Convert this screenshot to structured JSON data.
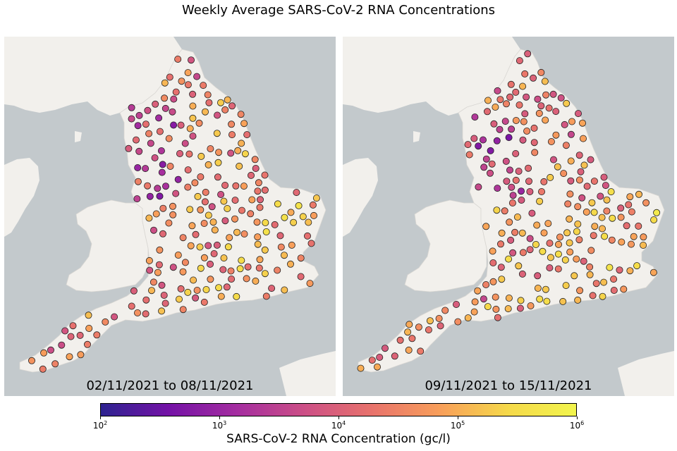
{
  "title": "Weekly Average SARS-CoV-2 RNA Concentrations",
  "panels": [
    {
      "label": "02/11/2021 to 08/11/2021",
      "seed": 11
    },
    {
      "label": "09/11/2021 to 15/11/2021",
      "seed": 29
    }
  ],
  "colorbar": {
    "label": "SARS-CoV-2 RNA Concentration (gc/l)",
    "ticks": [
      {
        "base": "10",
        "exp": "2"
      },
      {
        "base": "10",
        "exp": "3"
      },
      {
        "base": "10",
        "exp": "4"
      },
      {
        "base": "10",
        "exp": "5"
      },
      {
        "base": "10",
        "exp": "6"
      }
    ],
    "colormap": "plasma",
    "scale": "log"
  },
  "colors": {
    "sea": "#c3c9cc",
    "land": "#f2f0ec",
    "colormap_stops": [
      "#2d2390",
      "#7412a6",
      "#a42da0",
      "#cc4f86",
      "#e8736c",
      "#f89f5a",
      "#f5d94a",
      "#f2f54d"
    ]
  }
}
